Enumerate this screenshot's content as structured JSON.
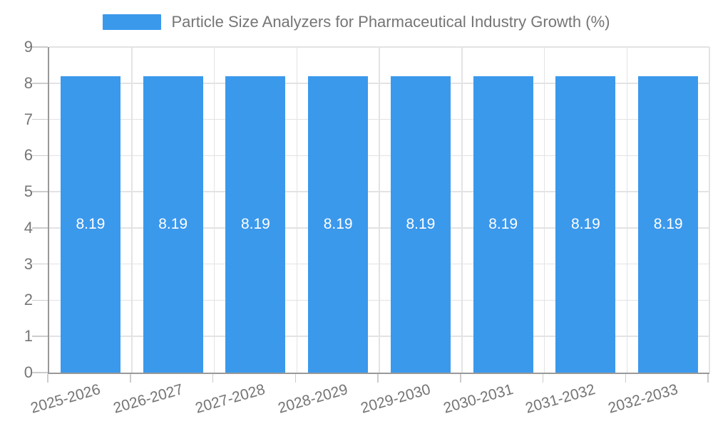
{
  "legend": {
    "title": "Particle Size Analyzers for Pharmaceutical Industry Growth (%)"
  },
  "colors": {
    "bar": "#3B99EC",
    "grid": "#E3E3E3",
    "axis": "#999999",
    "tick": "#CCCCCC",
    "text": "#757575",
    "value_label": "#FFFFFF",
    "background": "#FFFFFF"
  },
  "chart_data": {
    "type": "bar",
    "title": "Particle Size Analyzers for Pharmaceutical Industry Growth (%)",
    "categories": [
      "2025-2026",
      "2026-2027",
      "2027-2028",
      "2028-2029",
      "2029-2030",
      "2030-2031",
      "2031-2032",
      "2032-2033"
    ],
    "values": [
      8.19,
      8.19,
      8.19,
      8.19,
      8.19,
      8.19,
      8.19,
      8.19
    ],
    "value_labels": [
      "8.19",
      "8.19",
      "8.19",
      "8.19",
      "8.19",
      "8.19",
      "8.19",
      "8.19"
    ],
    "xlabel": "",
    "ylabel": "",
    "ylim": [
      0,
      9
    ],
    "yticks": [
      0,
      1,
      2,
      3,
      4,
      5,
      6,
      7,
      8,
      9
    ],
    "grid": true,
    "legend_position": "top",
    "x_tick_rotation_deg": -16
  }
}
